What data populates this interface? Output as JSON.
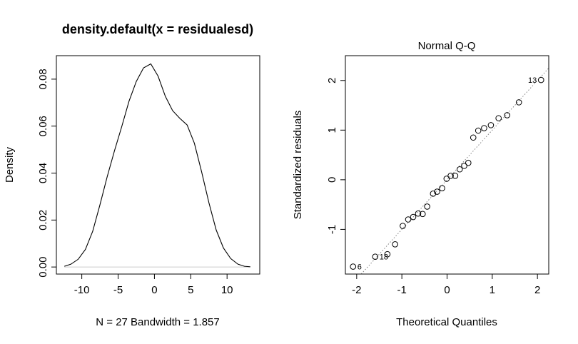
{
  "chart_data": [
    {
      "type": "line",
      "title": "density.default(x = residualesd)",
      "xlabel": "N = 27   Bandwidth = 1.857",
      "ylabel": "Density",
      "xlim": [
        -13.5,
        14.5
      ],
      "ylim": [
        -0.003,
        0.09
      ],
      "xticks": [
        -10,
        -5,
        0,
        5,
        10
      ],
      "yticks": [
        0.0,
        0.02,
        0.04,
        0.06,
        0.08
      ],
      "ytick_labels": [
        "0.00",
        "0.02",
        "0.04",
        "0.06",
        "0.08"
      ],
      "baseline": 0,
      "series": [
        {
          "x": [
            -12.4,
            -11.5,
            -10.5,
            -9.5,
            -8.5,
            -7.5,
            -6.5,
            -5.5,
            -4.5,
            -3.5,
            -2.5,
            -1.5,
            -0.5,
            0.5,
            1.5,
            2.5,
            3.5,
            4.5,
            5.5,
            6.5,
            7.5,
            8.5,
            9.5,
            10.5,
            11.5,
            12.4,
            13.2
          ],
          "y": [
            0.0003,
            0.0012,
            0.0033,
            0.0075,
            0.0152,
            0.0265,
            0.0385,
            0.0495,
            0.0598,
            0.0706,
            0.079,
            0.0848,
            0.0865,
            0.0813,
            0.0727,
            0.0666,
            0.0633,
            0.0605,
            0.0527,
            0.0405,
            0.0274,
            0.0158,
            0.0081,
            0.0036,
            0.0012,
            0.0003,
            0.0001
          ]
        }
      ]
    },
    {
      "type": "scatter",
      "title": "Normal Q-Q",
      "xlabel": "Theoretical Quantiles",
      "ylabel": "Standardized residuals",
      "xlim": [
        -2.25,
        2.25
      ],
      "ylim": [
        -1.9,
        2.5
      ],
      "xticks": [
        -2,
        -1,
        0,
        1,
        2
      ],
      "yticks": [
        -1,
        0,
        1,
        2
      ],
      "reference_line": {
        "slope": 1.0,
        "intercept": 0.0
      },
      "series": [
        {
          "x": [
            -2.08,
            -1.59,
            -1.32,
            -1.15,
            -0.98,
            -0.86,
            -0.75,
            -0.64,
            -0.54,
            -0.44,
            -0.31,
            -0.22,
            -0.11,
            -0.01,
            0.08,
            0.18,
            0.28,
            0.38,
            0.47,
            0.58,
            0.69,
            0.82,
            0.97,
            1.14,
            1.33,
            1.59,
            2.08
          ],
          "y": [
            -1.75,
            -1.55,
            -1.5,
            -1.3,
            -0.93,
            -0.8,
            -0.75,
            -0.68,
            -0.69,
            -0.54,
            -0.28,
            -0.24,
            -0.17,
            0.02,
            0.08,
            0.08,
            0.21,
            0.28,
            0.34,
            0.85,
            0.99,
            1.04,
            1.1,
            1.24,
            1.3,
            1.56,
            2.01
          ]
        }
      ],
      "point_labels": [
        {
          "index": 0,
          "text": "6"
        },
        {
          "index": 1,
          "text": "18"
        },
        {
          "index": 26,
          "text": "13"
        }
      ]
    }
  ]
}
